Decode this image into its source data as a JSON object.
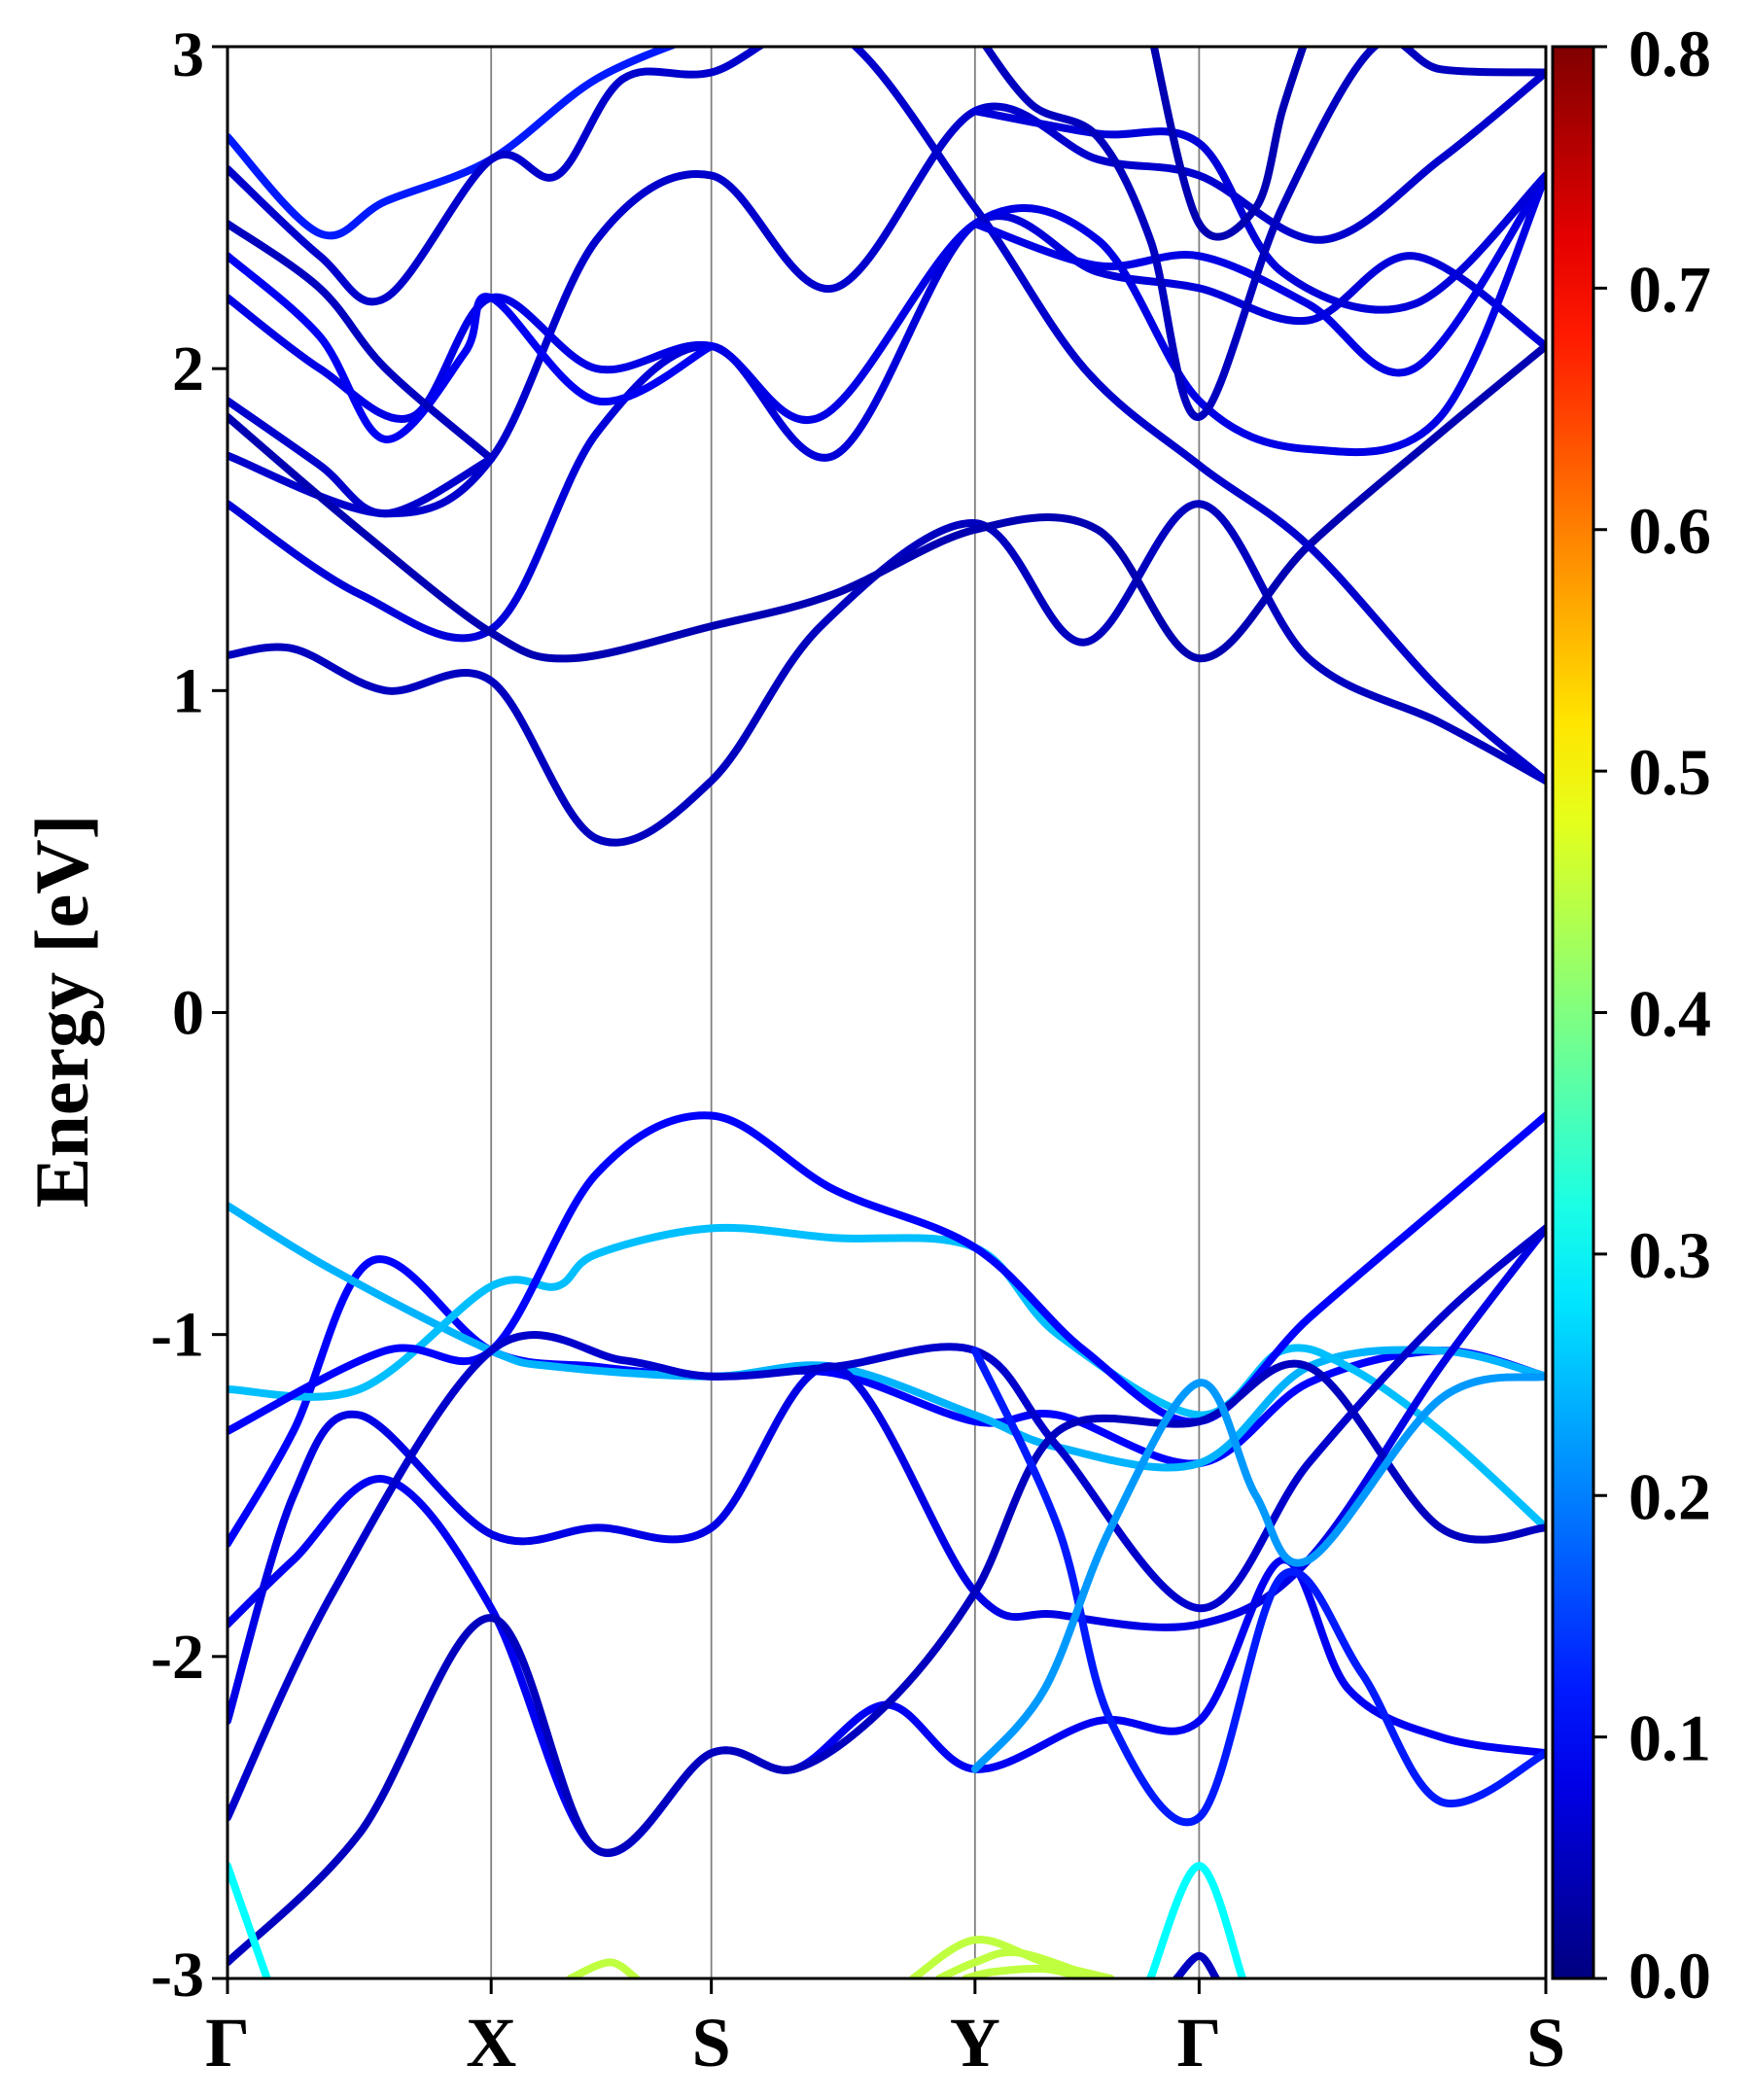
{
  "chart_data": {
    "type": "line",
    "title": "",
    "xlabel": "",
    "ylabel": "Energy [eV]",
    "ylim": [
      -3,
      3
    ],
    "x_ticks": [
      {
        "label": "Γ",
        "pos": 0.0
      },
      {
        "label": "X",
        "pos": 0.2
      },
      {
        "label": "S",
        "pos": 0.367
      },
      {
        "label": "Y",
        "pos": 0.567
      },
      {
        "label": "Γ",
        "pos": 0.737
      },
      {
        "label": "S",
        "pos": 1.0
      }
    ],
    "y_ticks": [
      "3",
      "2",
      "1",
      "0",
      "-1",
      "-2",
      "-3"
    ],
    "y_tick_values": [
      3,
      2,
      1,
      0,
      -1,
      -2,
      -3
    ],
    "vertical_grid": true,
    "colorbar": {
      "colormap": "jet",
      "range": [
        0.0,
        0.8
      ],
      "tick_values": [
        0.0,
        0.1,
        0.2,
        0.3,
        0.4,
        0.5,
        0.6,
        0.7,
        0.8
      ],
      "tick_labels": [
        "0.0",
        "0.1",
        "0.2",
        "0.3",
        "0.4",
        "0.5",
        "0.6",
        "0.7",
        "0.8"
      ],
      "placement": "right"
    },
    "series": [
      {
        "weight": 0.05,
        "points": [
          [
            0,
            1.11
          ],
          [
            0.05,
            1.13
          ],
          [
            0.12,
            1.0
          ],
          [
            0.2,
            1.03
          ],
          [
            0.28,
            0.54
          ],
          [
            0.367,
            0.72
          ],
          [
            0.45,
            1.2
          ],
          [
            0.567,
            1.52
          ],
          [
            0.65,
            1.15
          ],
          [
            0.737,
            1.58
          ],
          [
            0.82,
            1.1
          ],
          [
            0.92,
            0.9
          ],
          [
            1.0,
            0.72
          ]
        ]
      },
      {
        "weight": 0.07,
        "points": [
          [
            0,
            1.58
          ],
          [
            0.1,
            1.3
          ],
          [
            0.2,
            1.19
          ],
          [
            0.28,
            1.8
          ],
          [
            0.367,
            2.07
          ],
          [
            0.46,
            1.73
          ],
          [
            0.567,
            2.45
          ],
          [
            0.66,
            2.3
          ],
          [
            0.737,
            2.25
          ],
          [
            0.82,
            2.15
          ],
          [
            0.9,
            2.35
          ],
          [
            1.0,
            2.07
          ]
        ]
      },
      {
        "weight": 0.06,
        "points": [
          [
            0,
            1.73
          ],
          [
            0.12,
            1.55
          ],
          [
            0.2,
            1.72
          ],
          [
            0.28,
            2.4
          ],
          [
            0.367,
            2.6
          ],
          [
            0.46,
            2.25
          ],
          [
            0.567,
            2.8
          ],
          [
            0.66,
            2.65
          ],
          [
            0.737,
            2.6
          ],
          [
            0.83,
            2.4
          ],
          [
            0.92,
            2.65
          ],
          [
            1.0,
            2.92
          ]
        ]
      },
      {
        "weight": 0.04,
        "points": [
          [
            0,
            1.85
          ],
          [
            0.1,
            1.5
          ],
          [
            0.2,
            1.18
          ],
          [
            0.26,
            1.1
          ],
          [
            0.367,
            1.2
          ],
          [
            0.46,
            1.3
          ],
          [
            0.567,
            1.5
          ],
          [
            0.66,
            1.5
          ],
          [
            0.737,
            1.1
          ],
          [
            0.82,
            1.45
          ],
          [
            0.92,
            1.8
          ],
          [
            1.0,
            2.07
          ]
        ]
      },
      {
        "weight": 0.08,
        "points": [
          [
            0,
            2.22
          ],
          [
            0.07,
            2.0
          ],
          [
            0.14,
            1.85
          ],
          [
            0.2,
            2.22
          ],
          [
            0.28,
            2.0
          ],
          [
            0.367,
            2.07
          ],
          [
            0.45,
            1.85
          ],
          [
            0.567,
            2.45
          ],
          [
            0.66,
            2.4
          ],
          [
            0.737,
            1.9
          ],
          [
            0.82,
            1.75
          ],
          [
            0.92,
            1.85
          ],
          [
            1.0,
            2.6
          ]
        ]
      },
      {
        "weight": 0.09,
        "points": [
          [
            0,
            2.35
          ],
          [
            0.07,
            2.1
          ],
          [
            0.12,
            1.78
          ],
          [
            0.18,
            2.05
          ],
          [
            0.2,
            2.22
          ],
          [
            0.28,
            1.9
          ],
          [
            0.367,
            2.07
          ]
        ]
      },
      {
        "weight": 0.12,
        "points": [
          [
            0,
            2.72
          ],
          [
            0.07,
            2.42
          ],
          [
            0.12,
            2.52
          ],
          [
            0.2,
            2.65
          ],
          [
            0.28,
            2.9
          ],
          [
            0.367,
            3.05
          ]
        ]
      },
      {
        "weight": 0.06,
        "points": [
          [
            0,
            2.62
          ],
          [
            0.07,
            2.35
          ],
          [
            0.12,
            2.22
          ],
          [
            0.2,
            2.65
          ],
          [
            0.25,
            2.6
          ],
          [
            0.3,
            2.9
          ],
          [
            0.367,
            2.92
          ],
          [
            0.46,
            3.05
          ],
          [
            0.567,
            2.5
          ],
          [
            0.65,
            2.0
          ],
          [
            0.737,
            1.7
          ],
          [
            0.82,
            1.45
          ],
          [
            0.92,
            1.0
          ],
          [
            1.0,
            0.72
          ]
        ]
      },
      {
        "weight": 0.05,
        "points": [
          [
            0,
            2.45
          ],
          [
            0.07,
            2.25
          ],
          [
            0.12,
            2.0
          ],
          [
            0.2,
            1.72
          ]
        ]
      },
      {
        "weight": 0.06,
        "points": [
          [
            0,
            1.9
          ],
          [
            0.07,
            1.7
          ],
          [
            0.12,
            1.55
          ],
          [
            0.2,
            1.72
          ]
        ]
      },
      {
        "weight": 0.08,
        "points": [
          [
            0.567,
            2.45
          ],
          [
            0.66,
            2.32
          ],
          [
            0.737,
            2.35
          ],
          [
            0.82,
            2.2
          ],
          [
            0.9,
            2.0
          ],
          [
            1.0,
            2.6
          ]
        ]
      },
      {
        "weight": 0.07,
        "points": [
          [
            0.567,
            2.8
          ],
          [
            0.66,
            2.73
          ],
          [
            0.737,
            2.7
          ],
          [
            0.8,
            2.3
          ],
          [
            0.9,
            2.2
          ],
          [
            1.0,
            2.6
          ]
        ]
      },
      {
        "weight": 0.05,
        "points": [
          [
            0.567,
            3.05
          ],
          [
            0.61,
            2.82
          ],
          [
            0.66,
            2.72
          ],
          [
            0.7,
            2.4
          ],
          [
            0.737,
            1.85
          ],
          [
            0.8,
            2.5
          ],
          [
            0.87,
            3.0
          ],
          [
            0.92,
            2.93
          ],
          [
            1.0,
            2.92
          ]
        ]
      },
      {
        "weight": 0.04,
        "points": [
          [
            0.7,
            3.05
          ],
          [
            0.737,
            2.45
          ],
          [
            0.78,
            2.5
          ],
          [
            0.8,
            2.8
          ],
          [
            0.82,
            3.05
          ]
        ]
      },
      {
        "weight": 0.09,
        "points": [
          [
            0,
            -1.9
          ],
          [
            0.05,
            -1.7
          ],
          [
            0.12,
            -1.45
          ],
          [
            0.2,
            -1.85
          ],
          [
            0.28,
            -2.6
          ],
          [
            0.367,
            -2.3
          ],
          [
            0.43,
            -2.35
          ],
          [
            0.5,
            -2.15
          ],
          [
            0.567,
            -2.35
          ],
          [
            0.66,
            -2.2
          ],
          [
            0.737,
            -2.2
          ],
          [
            0.8,
            -1.7
          ],
          [
            0.85,
            -2.1
          ],
          [
            0.92,
            -2.25
          ],
          [
            1.0,
            -2.3
          ]
        ]
      },
      {
        "weight": 0.1,
        "points": [
          [
            0,
            -1.65
          ],
          [
            0.05,
            -1.3
          ],
          [
            0.11,
            -0.77
          ],
          [
            0.2,
            -1.05
          ],
          [
            0.28,
            -1.1
          ],
          [
            0.367,
            -1.13
          ],
          [
            0.46,
            -1.12
          ],
          [
            0.567,
            -1.27
          ],
          [
            0.63,
            -1.25
          ],
          [
            0.737,
            -1.4
          ],
          [
            0.82,
            -1.15
          ],
          [
            0.92,
            -1.05
          ],
          [
            1.0,
            -1.13
          ]
        ]
      },
      {
        "weight": 0.24,
        "points": [
          [
            0,
            -0.6
          ],
          [
            0.08,
            -0.8
          ],
          [
            0.2,
            -1.05
          ],
          [
            0.25,
            -1.1
          ],
          [
            0.367,
            -1.13
          ],
          [
            0.46,
            -1.1
          ],
          [
            0.567,
            -1.25
          ],
          [
            0.63,
            -1.35
          ],
          [
            0.737,
            -1.4
          ],
          [
            0.82,
            -1.1
          ],
          [
            0.92,
            -1.05
          ],
          [
            1.0,
            -1.13
          ]
        ]
      },
      {
        "weight": 0.25,
        "points": [
          [
            0,
            -1.17
          ],
          [
            0.1,
            -1.17
          ],
          [
            0.2,
            -0.85
          ],
          [
            0.25,
            -0.85
          ],
          [
            0.28,
            -0.75
          ],
          [
            0.367,
            -0.67
          ],
          [
            0.46,
            -0.7
          ],
          [
            0.567,
            -0.73
          ],
          [
            0.63,
            -1.0
          ],
          [
            0.737,
            -1.25
          ],
          [
            0.8,
            -1.05
          ],
          [
            0.85,
            -1.1
          ],
          [
            0.92,
            -1.3
          ],
          [
            1.0,
            -1.6
          ]
        ]
      },
      {
        "weight": 0.1,
        "points": [
          [
            0,
            -1.3
          ],
          [
            0.12,
            -1.05
          ],
          [
            0.2,
            -1.05
          ],
          [
            0.28,
            -0.5
          ],
          [
            0.367,
            -0.32
          ],
          [
            0.46,
            -0.55
          ],
          [
            0.567,
            -0.73
          ],
          [
            0.65,
            -1.05
          ],
          [
            0.737,
            -1.27
          ],
          [
            0.82,
            -0.95
          ],
          [
            0.92,
            -0.6
          ],
          [
            1.0,
            -0.32
          ]
        ]
      },
      {
        "weight": 0.08,
        "points": [
          [
            0,
            -2.2
          ],
          [
            0.05,
            -1.5
          ],
          [
            0.1,
            -1.25
          ],
          [
            0.2,
            -1.62
          ],
          [
            0.28,
            -1.6
          ],
          [
            0.367,
            -1.6
          ],
          [
            0.46,
            -1.1
          ],
          [
            0.567,
            -1.8
          ],
          [
            0.63,
            -1.87
          ],
          [
            0.737,
            -1.9
          ],
          [
            0.82,
            -1.7
          ],
          [
            0.92,
            -1.1
          ],
          [
            1.0,
            -0.67
          ]
        ]
      },
      {
        "weight": 0.06,
        "points": [
          [
            0,
            -2.5
          ],
          [
            0.08,
            -1.8
          ],
          [
            0.2,
            -1.05
          ],
          [
            0.3,
            -1.08
          ],
          [
            0.367,
            -1.13
          ],
          [
            0.46,
            -1.1
          ],
          [
            0.567,
            -1.05
          ],
          [
            0.63,
            -1.35
          ],
          [
            0.737,
            -1.85
          ],
          [
            0.82,
            -1.4
          ],
          [
            0.92,
            -0.95
          ],
          [
            1.0,
            -0.67
          ]
        ]
      },
      {
        "weight": 0.05,
        "points": [
          [
            0,
            -2.95
          ],
          [
            0.1,
            -2.55
          ],
          [
            0.2,
            -1.88
          ],
          [
            0.28,
            -2.6
          ],
          [
            0.367,
            -2.3
          ],
          [
            0.43,
            -2.35
          ],
          [
            0.5,
            -2.15
          ],
          [
            0.567,
            -1.8
          ],
          [
            0.63,
            -1.3
          ],
          [
            0.737,
            -1.27
          ],
          [
            0.82,
            -1.1
          ],
          [
            0.92,
            -1.6
          ],
          [
            1.0,
            -1.6
          ]
        ]
      },
      {
        "weight": 0.12,
        "points": [
          [
            0.567,
            -1.05
          ],
          [
            0.63,
            -1.6
          ],
          [
            0.67,
            -2.2
          ],
          [
            0.737,
            -2.5
          ],
          [
            0.8,
            -1.75
          ],
          [
            0.86,
            -2.05
          ],
          [
            0.92,
            -2.45
          ],
          [
            1.0,
            -2.3
          ]
        ]
      },
      {
        "weight": 0.22,
        "points": [
          [
            0.567,
            -2.35
          ],
          [
            0.62,
            -2.1
          ],
          [
            0.67,
            -1.6
          ],
          [
            0.737,
            -1.15
          ],
          [
            0.78,
            -1.5
          ],
          [
            0.82,
            -1.7
          ],
          [
            0.92,
            -1.2
          ],
          [
            1.0,
            -1.13
          ]
        ]
      },
      {
        "weight": 0.3,
        "points": [
          [
            0,
            -2.65
          ],
          [
            0.03,
            -3.0
          ]
        ]
      },
      {
        "weight": 0.3,
        "points": [
          [
            0.7,
            -3.0
          ],
          [
            0.737,
            -2.65
          ],
          [
            0.77,
            -3.0
          ]
        ]
      },
      {
        "weight": 0.05,
        "points": [
          [
            0.72,
            -3.0
          ],
          [
            0.737,
            -2.93
          ],
          [
            0.75,
            -3.0
          ]
        ]
      },
      {
        "weight": 0.45,
        "points": [
          [
            0.26,
            -3.0
          ],
          [
            0.29,
            -2.95
          ],
          [
            0.31,
            -3.0
          ]
        ]
      },
      {
        "weight": 0.45,
        "points": [
          [
            0.52,
            -3.0
          ],
          [
            0.567,
            -2.88
          ],
          [
            0.62,
            -2.95
          ],
          [
            0.67,
            -3.0
          ]
        ]
      },
      {
        "weight": 0.45,
        "points": [
          [
            0.54,
            -3.0
          ],
          [
            0.567,
            -2.95
          ],
          [
            0.6,
            -2.92
          ],
          [
            0.66,
            -3.0
          ]
        ]
      },
      {
        "weight": 0.45,
        "points": [
          [
            0.56,
            -3.0
          ],
          [
            0.58,
            -2.98
          ],
          [
            0.62,
            -2.97
          ],
          [
            0.65,
            -3.0
          ]
        ]
      }
    ]
  }
}
